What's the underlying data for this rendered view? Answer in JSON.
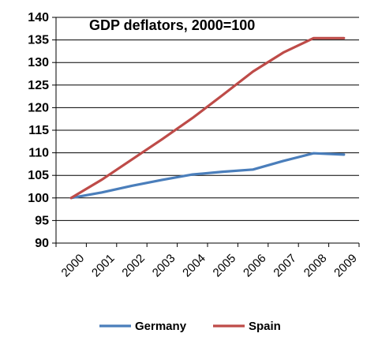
{
  "chart_data": {
    "type": "line",
    "title": "GDP deflators, 2000=100",
    "categories": [
      "2000",
      "2001",
      "2002",
      "2003",
      "2004",
      "2005",
      "2006",
      "2007",
      "2008",
      "2009"
    ],
    "series": [
      {
        "name": "Germany",
        "color": "#4a7ebb",
        "values": [
          100,
          101.2,
          102.7,
          104.0,
          105.2,
          105.8,
          106.3,
          108.2,
          109.9,
          109.6
        ]
      },
      {
        "name": "Spain",
        "color": "#be4b48",
        "values": [
          100,
          104.0,
          108.5,
          113.0,
          117.7,
          122.8,
          128.0,
          132.2,
          135.4,
          135.4
        ]
      }
    ],
    "ylim": [
      90,
      140
    ],
    "yticks": [
      "90",
      "95",
      "100",
      "105",
      "110",
      "115",
      "120",
      "125",
      "130",
      "135",
      "140"
    ],
    "grid": true,
    "legend": "bottom"
  }
}
